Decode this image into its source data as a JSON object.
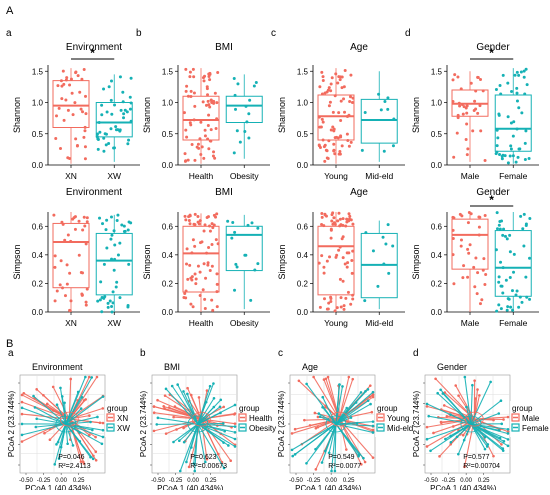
{
  "section_labels": [
    "A",
    "B"
  ],
  "colors": {
    "red": "#f26b5e",
    "teal": "#15b1b5",
    "dark": "#333333"
  },
  "chart_data": [
    {
      "type": "box",
      "panel": "a",
      "title": "Environment",
      "ylabel": "Shannon",
      "categories": [
        "XN",
        "XW"
      ],
      "ylim": [
        0,
        1.6
      ],
      "yticks": [
        "0.0",
        "0.5",
        "1.0",
        "1.5"
      ],
      "boxes": [
        {
          "q1": 0.6,
          "median": 0.95,
          "q3": 1.35,
          "lo": 0.02,
          "hi": 1.55
        },
        {
          "q1": 0.45,
          "median": 0.68,
          "q3": 1.0,
          "lo": 0.05,
          "hi": 1.45
        }
      ],
      "significance": "*",
      "point_counts": [
        40,
        45
      ]
    },
    {
      "type": "box",
      "panel": "b",
      "title": "BMI",
      "ylabel": "Shannon",
      "categories": [
        "Health",
        "Obesity"
      ],
      "ylim": [
        0,
        1.6
      ],
      "yticks": [
        "0.0",
        "0.5",
        "1.0",
        "1.5"
      ],
      "boxes": [
        {
          "q1": 0.4,
          "median": 0.72,
          "q3": 1.1,
          "lo": 0.02,
          "hi": 1.55
        },
        {
          "q1": 0.68,
          "median": 0.95,
          "q3": 1.1,
          "lo": 0.1,
          "hi": 1.45
        }
      ],
      "significance": "",
      "point_counts": [
        70,
        15
      ]
    },
    {
      "type": "box",
      "panel": "c",
      "title": "Age",
      "ylabel": "Shannon",
      "categories": [
        "Young",
        "Mid-eld"
      ],
      "ylim": [
        0,
        1.6
      ],
      "yticks": [
        "0.0",
        "0.5",
        "1.0",
        "1.5"
      ],
      "boxes": [
        {
          "q1": 0.4,
          "median": 0.78,
          "q3": 1.12,
          "lo": 0.02,
          "hi": 1.55
        },
        {
          "q1": 0.35,
          "median": 0.72,
          "q3": 1.05,
          "lo": 0.05,
          "hi": 1.5
        }
      ],
      "significance": "",
      "point_counts": [
        75,
        10
      ]
    },
    {
      "type": "box",
      "panel": "d",
      "title": "Gender",
      "ylabel": "Shannon",
      "categories": [
        "Male",
        "Female"
      ],
      "ylim": [
        0,
        1.6
      ],
      "yticks": [
        "0.0",
        "0.5",
        "1.0",
        "1.5"
      ],
      "boxes": [
        {
          "q1": 0.78,
          "median": 0.98,
          "q3": 1.2,
          "lo": 0.05,
          "hi": 1.5
        },
        {
          "q1": 0.22,
          "median": 0.58,
          "q3": 1.12,
          "lo": 0.02,
          "hi": 1.55
        }
      ],
      "significance": "*",
      "point_counts": [
        35,
        50
      ]
    },
    {
      "type": "box",
      "panel": "",
      "title": "Environment",
      "ylabel": "Simpson",
      "categories": [
        "XN",
        "XW"
      ],
      "ylim": [
        0,
        0.7
      ],
      "yticks": [
        "0.0",
        "0.2",
        "0.4",
        "0.6"
      ],
      "boxes": [
        {
          "q1": 0.17,
          "median": 0.49,
          "q3": 0.62,
          "lo": 0.0,
          "hi": 0.7
        },
        {
          "q1": 0.12,
          "median": 0.36,
          "q3": 0.55,
          "lo": 0.0,
          "hi": 0.68
        }
      ],
      "significance": "",
      "point_counts": [
        40,
        45
      ]
    },
    {
      "type": "box",
      "panel": "",
      "title": "BMI",
      "ylabel": "Simpson",
      "categories": [
        "Health",
        "Obesity"
      ],
      "ylim": [
        0,
        0.7
      ],
      "yticks": [
        "0.0",
        "0.2",
        "0.4",
        "0.6"
      ],
      "boxes": [
        {
          "q1": 0.14,
          "median": 0.41,
          "q3": 0.6,
          "lo": 0.0,
          "hi": 0.69
        },
        {
          "q1": 0.29,
          "median": 0.54,
          "q3": 0.6,
          "lo": 0.02,
          "hi": 0.68
        }
      ],
      "significance": "",
      "point_counts": [
        70,
        15
      ]
    },
    {
      "type": "box",
      "panel": "",
      "title": "Age",
      "ylabel": "Simpson",
      "categories": [
        "Young",
        "Mid-eld"
      ],
      "ylim": [
        0,
        0.7
      ],
      "yticks": [
        "0.0",
        "0.2",
        "0.4",
        "0.6"
      ],
      "boxes": [
        {
          "q1": 0.12,
          "median": 0.46,
          "q3": 0.6,
          "lo": 0.0,
          "hi": 0.7
        },
        {
          "q1": 0.1,
          "median": 0.33,
          "q3": 0.55,
          "lo": 0.02,
          "hi": 0.64
        }
      ],
      "significance": "",
      "point_counts": [
        75,
        10
      ]
    },
    {
      "type": "box",
      "panel": "",
      "title": "Gender",
      "ylabel": "Simpson",
      "categories": [
        "Male",
        "Female"
      ],
      "ylim": [
        0,
        0.7
      ],
      "yticks": [
        "0.0",
        "0.2",
        "0.4",
        "0.6"
      ],
      "boxes": [
        {
          "q1": 0.3,
          "median": 0.54,
          "q3": 0.65,
          "lo": 0.0,
          "hi": 0.7
        },
        {
          "q1": 0.11,
          "median": 0.31,
          "q3": 0.57,
          "lo": 0.0,
          "hi": 0.7
        }
      ],
      "significance": "*",
      "point_counts": [
        35,
        50
      ]
    },
    {
      "type": "scatter",
      "panel": "a",
      "title": "Environment",
      "xlabel": "PCoA 1 (40.434%)",
      "ylabel": "PCoA 2 (23.744%)",
      "xticks": [
        "-0.50",
        "-0.25",
        "0.00",
        "0.25"
      ],
      "yticks": [
        "0.4",
        "0.2",
        "0.0",
        "-0.2",
        "-0.4"
      ],
      "legend_title": "group",
      "groups": [
        "XN",
        "XW"
      ],
      "stats": [
        "P=0.046",
        "R²=2.4113"
      ],
      "legend_pos": "right"
    },
    {
      "type": "scatter",
      "panel": "b",
      "title": "BMI",
      "xlabel": "PCoA 1 (40.434%)",
      "ylabel": "PCoA 2 (23.744%)",
      "xticks": [
        "-0.50",
        "-0.25",
        "0.00",
        "0.25"
      ],
      "yticks": [
        "0.4",
        "0.2",
        "0.0",
        "-0.2",
        "-0.4"
      ],
      "legend_title": "group",
      "groups": [
        "Health",
        "Obesity"
      ],
      "stats": [
        "P=0.623",
        "R²=0.00673"
      ],
      "legend_pos": "right"
    },
    {
      "type": "scatter",
      "panel": "c",
      "title": "Age",
      "xlabel": "PCoA 1 (40.434%)",
      "ylabel": "PCoA 2 (23.744%)",
      "xticks": [
        "-0.50",
        "-0.25",
        "0.00",
        "0.25"
      ],
      "yticks": [
        "0.4",
        "0.2",
        "0.0",
        "-0.2",
        "-0.4"
      ],
      "legend_title": "group",
      "groups": [
        "Young",
        "Mid-eld"
      ],
      "stats": [
        "P=0.549",
        "R²=0.0077"
      ],
      "legend_pos": "right"
    },
    {
      "type": "scatter",
      "panel": "d",
      "title": "Gender",
      "xlabel": "PCoA 1 (40.434%)",
      "ylabel": "PCoA 2 (23.744%)",
      "xticks": [
        "-0.50",
        "-0.25",
        "0.00",
        "0.25"
      ],
      "yticks": [
        "0.4",
        "0.2",
        "0.0",
        "-0.2",
        "-0.4"
      ],
      "legend_title": "group",
      "groups": [
        "Male",
        "Female"
      ],
      "stats": [
        "P=0.577",
        "R²=0.00704"
      ],
      "legend_pos": "right"
    }
  ]
}
